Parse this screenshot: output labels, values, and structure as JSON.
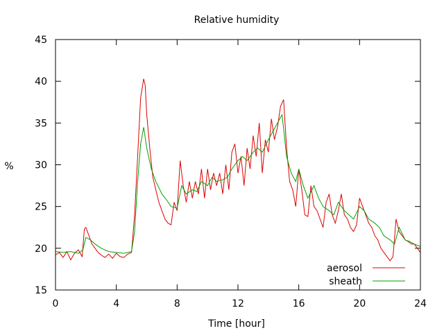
{
  "chart_data": {
    "type": "line",
    "title": "Relative humidity",
    "xlabel": "Time [hour]",
    "ylabel": "%",
    "xlim": [
      0,
      24
    ],
    "ylim": [
      15,
      45
    ],
    "xticks": [
      0,
      4,
      8,
      12,
      16,
      20,
      24
    ],
    "yticks": [
      15,
      20,
      25,
      30,
      35,
      40,
      45
    ],
    "grid": false,
    "legend_position": "bottom-right",
    "series": [
      {
        "name": "aerosol",
        "color": "#dd0000",
        "x": [
          0,
          0.25,
          0.5,
          0.75,
          1.0,
          1.25,
          1.5,
          1.75,
          1.9,
          2.0,
          2.2,
          2.4,
          2.6,
          2.8,
          3.0,
          3.25,
          3.5,
          3.75,
          4.0,
          4.25,
          4.5,
          4.75,
          5.0,
          5.2,
          5.4,
          5.6,
          5.8,
          5.9,
          6.0,
          6.2,
          6.4,
          6.6,
          6.8,
          7.0,
          7.2,
          7.4,
          7.6,
          7.8,
          8.0,
          8.2,
          8.4,
          8.6,
          8.8,
          9.0,
          9.2,
          9.4,
          9.6,
          9.8,
          10.0,
          10.2,
          10.4,
          10.6,
          10.8,
          11.0,
          11.2,
          11.4,
          11.6,
          11.8,
          12.0,
          12.2,
          12.4,
          12.6,
          12.8,
          13.0,
          13.2,
          13.4,
          13.6,
          13.8,
          14.0,
          14.2,
          14.4,
          14.6,
          14.8,
          15.0,
          15.2,
          15.4,
          15.6,
          15.8,
          16.0,
          16.2,
          16.4,
          16.6,
          16.8,
          17.0,
          17.2,
          17.4,
          17.6,
          17.8,
          18.0,
          18.2,
          18.4,
          18.6,
          18.8,
          19.0,
          19.2,
          19.4,
          19.6,
          19.8,
          20.0,
          20.2,
          20.4,
          20.6,
          20.8,
          21.0,
          21.2,
          21.4,
          21.6,
          21.8,
          22.0,
          22.2,
          22.4,
          22.6,
          22.8,
          23.0,
          23.2,
          23.4,
          23.6,
          23.8,
          24.0
        ],
        "y": [
          19.2,
          19.5,
          18.9,
          19.6,
          18.6,
          19.4,
          19.8,
          19.0,
          22.3,
          22.5,
          21.5,
          20.5,
          20.0,
          19.5,
          19.2,
          18.9,
          19.3,
          18.8,
          19.4,
          19.0,
          18.9,
          19.3,
          19.5,
          24.0,
          31.0,
          38.0,
          40.3,
          39.5,
          36.0,
          32.0,
          28.5,
          27.0,
          25.5,
          24.5,
          23.5,
          23.0,
          22.8,
          25.5,
          24.5,
          30.5,
          27.5,
          25.5,
          28.0,
          26.0,
          28.0,
          26.5,
          29.5,
          26.0,
          29.5,
          27.0,
          29.0,
          27.5,
          29.0,
          26.5,
          30.0,
          27.0,
          31.5,
          32.5,
          29.0,
          31.0,
          27.5,
          32.0,
          29.5,
          33.5,
          31.0,
          35.0,
          29.0,
          33.0,
          31.5,
          35.5,
          33.0,
          34.5,
          37.0,
          37.8,
          32.0,
          28.0,
          27.0,
          25.0,
          29.5,
          27.0,
          24.0,
          23.8,
          27.5,
          25.0,
          24.5,
          23.5,
          22.5,
          25.5,
          26.5,
          24.0,
          23.0,
          24.5,
          26.5,
          24.0,
          23.5,
          22.5,
          22.0,
          22.8,
          26.0,
          25.0,
          24.0,
          23.0,
          22.5,
          21.5,
          21.0,
          20.0,
          19.5,
          19.0,
          18.5,
          19.0,
          23.5,
          22.0,
          21.5,
          21.0,
          20.8,
          20.5,
          20.5,
          20.0,
          19.5
        ]
      },
      {
        "name": "sheath",
        "color": "#00a000",
        "x": [
          0,
          0.5,
          1.0,
          1.5,
          1.8,
          2.0,
          2.3,
          2.6,
          3.0,
          3.5,
          4.0,
          4.5,
          5.0,
          5.2,
          5.4,
          5.6,
          5.8,
          6.0,
          6.3,
          6.6,
          7.0,
          7.3,
          7.6,
          8.0,
          8.3,
          8.6,
          9.0,
          9.3,
          9.6,
          10.0,
          10.3,
          10.6,
          11.0,
          11.3,
          11.6,
          12.0,
          12.3,
          12.6,
          13.0,
          13.3,
          13.6,
          14.0,
          14.3,
          14.6,
          14.9,
          15.2,
          15.5,
          15.8,
          16.0,
          16.3,
          16.6,
          17.0,
          17.3,
          17.6,
          18.0,
          18.3,
          18.6,
          19.0,
          19.3,
          19.6,
          20.0,
          20.3,
          20.6,
          21.0,
          21.3,
          21.6,
          22.0,
          22.3,
          22.6,
          23.0,
          23.3,
          23.6,
          24.0
        ],
        "y": [
          19.6,
          19.5,
          19.6,
          19.4,
          19.8,
          21.3,
          21.0,
          20.5,
          20.0,
          19.6,
          19.5,
          19.4,
          19.6,
          22.0,
          28.0,
          32.5,
          34.5,
          32.0,
          29.5,
          28.0,
          26.5,
          25.8,
          25.0,
          24.8,
          27.5,
          26.5,
          27.0,
          26.8,
          28.0,
          27.5,
          28.5,
          28.0,
          28.2,
          28.5,
          29.5,
          30.5,
          31.0,
          30.5,
          31.5,
          32.0,
          31.5,
          33.0,
          34.0,
          35.0,
          36.0,
          31.0,
          29.0,
          28.0,
          29.5,
          27.5,
          26.0,
          27.5,
          26.0,
          25.0,
          24.5,
          24.0,
          25.5,
          24.5,
          24.0,
          23.5,
          25.0,
          24.5,
          23.5,
          23.0,
          22.5,
          21.5,
          21.0,
          20.5,
          22.5,
          21.0,
          20.8,
          20.5,
          20.2
        ]
      }
    ]
  }
}
